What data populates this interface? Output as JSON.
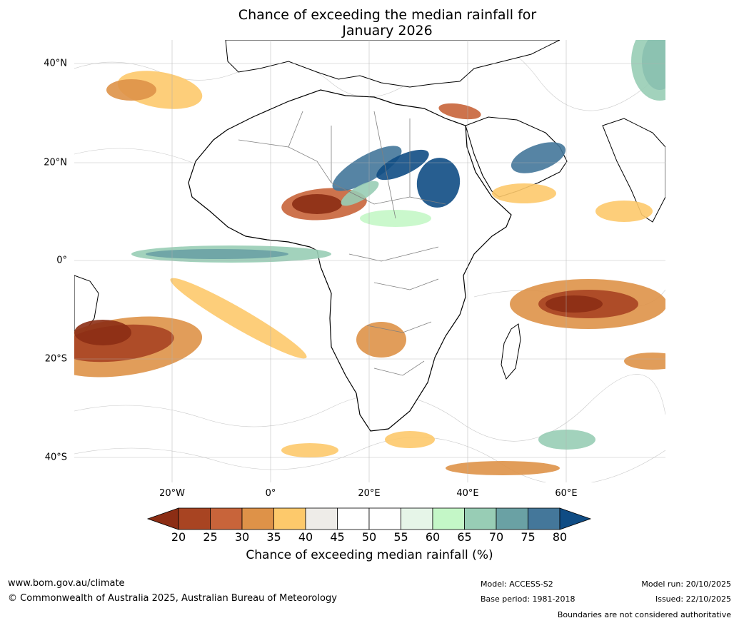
{
  "title": {
    "line1": "Chance of exceeding the median rainfall for",
    "line2": "January 2026"
  },
  "map": {
    "region": "Africa and surrounding oceans",
    "latitude_labels": [
      "40°N",
      "20°N",
      "0°",
      "20°S",
      "40°S"
    ],
    "longitude_labels": [
      "20°W",
      "0°",
      "20°E",
      "40°E",
      "60°E"
    ],
    "colors": {
      "ocean": "#ffffff",
      "coast": "#000000",
      "border": "#808080",
      "grid": "#b0b0b0"
    }
  },
  "legend": {
    "ticks": [
      "20",
      "25",
      "30",
      "35",
      "40",
      "45",
      "50",
      "55",
      "60",
      "65",
      "70",
      "75",
      "80"
    ],
    "colors": [
      "#8c2d14",
      "#a84422",
      "#c8643a",
      "#de9248",
      "#fdc96b",
      "#eeece8",
      "#ffffff",
      "#ffffff",
      "#e6f5e8",
      "#c4f7c7",
      "#98cdb5",
      "#6aa1a4",
      "#44779a",
      "#0f4c84"
    ],
    "label": "Chance of exceeding median rainfall (%)"
  },
  "footer": {
    "website": "www.bom.gov.au/climate",
    "copyright": "© Commonwealth of Australia 2025, Australian Bureau of Meteorology",
    "model": "Model: ACCESS-S2",
    "base_period": "Base period: 1981-2018",
    "model_run": "Model run: 20/10/2025",
    "issued": "Issued: 22/10/2025",
    "disclaimer": "Boundaries are not considered authoritative"
  }
}
